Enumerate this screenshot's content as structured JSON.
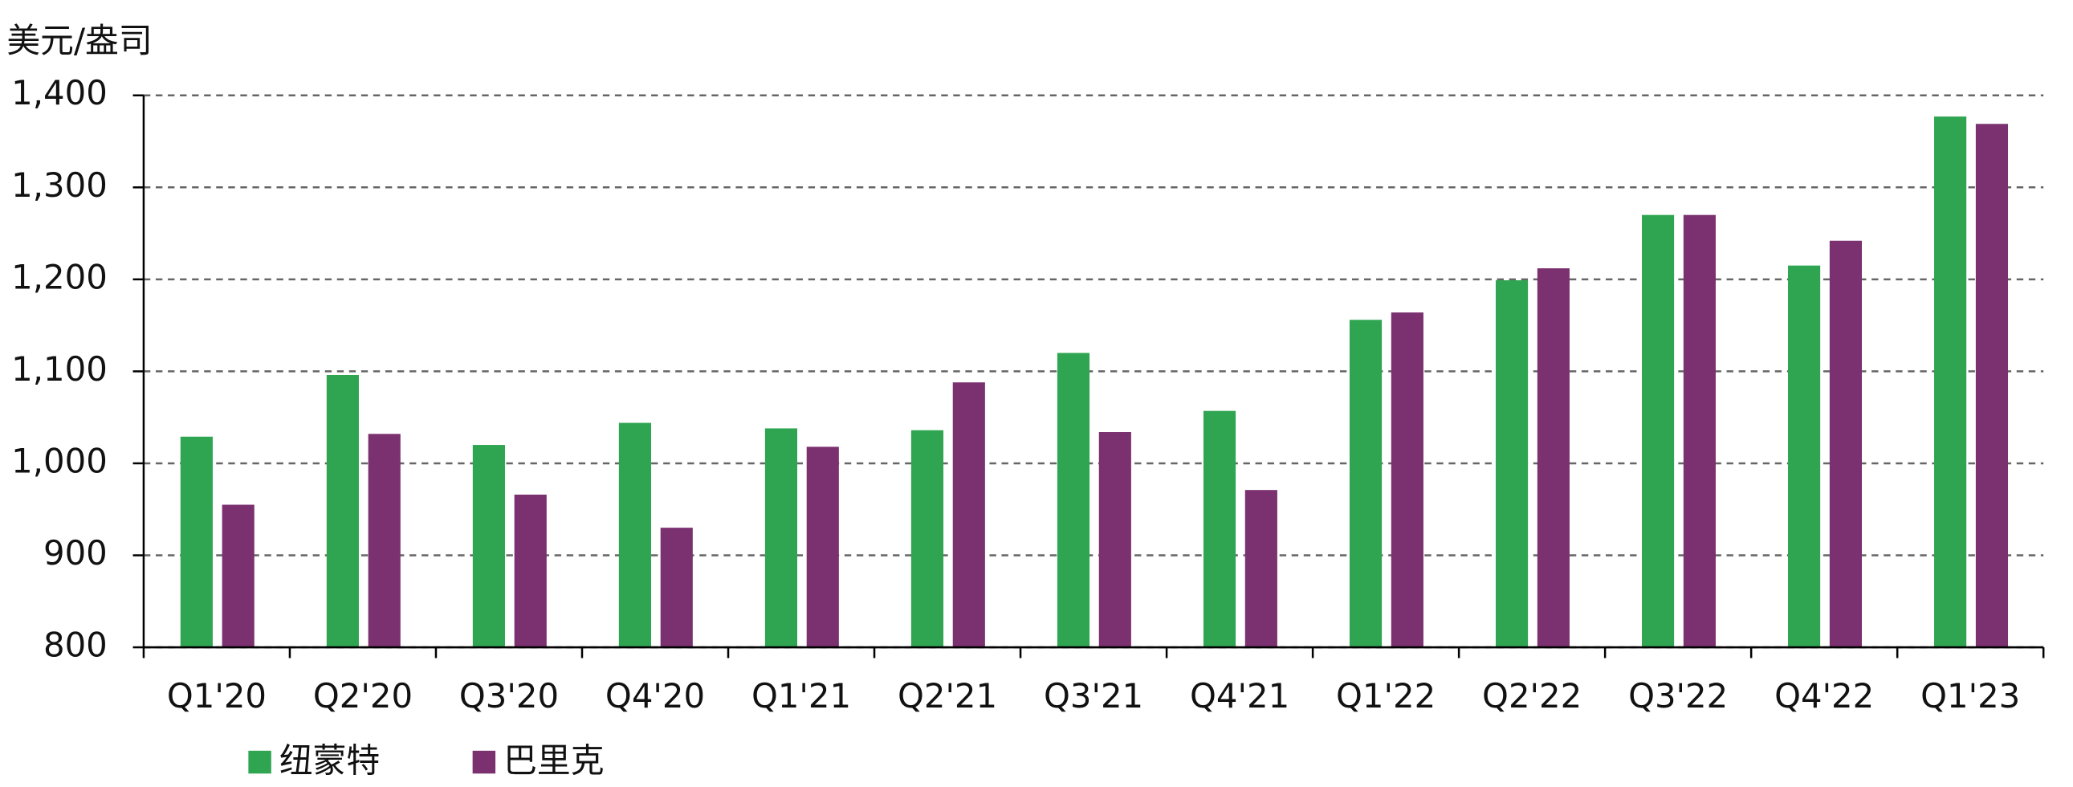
{
  "chart_data": {
    "type": "bar",
    "y_label": "美元/盎司",
    "categories": [
      "Q1'20",
      "Q2'20",
      "Q3'20",
      "Q4'20",
      "Q1'21",
      "Q2'21",
      "Q3'21",
      "Q4'21",
      "Q1'22",
      "Q2'22",
      "Q3'22",
      "Q4'22",
      "Q1'23"
    ],
    "series": [
      {
        "name": "纽蒙特",
        "color": "#2fa551",
        "values": [
          1029,
          1096,
          1020,
          1044,
          1038,
          1036,
          1120,
          1057,
          1156,
          1199,
          1270,
          1215,
          1377
        ]
      },
      {
        "name": "巴里克",
        "color": "#7b3170",
        "values": [
          955,
          1032,
          966,
          930,
          1018,
          1088,
          1034,
          971,
          1164,
          1212,
          1270,
          1242,
          1369
        ]
      }
    ],
    "ylim": [
      800,
      1400
    ],
    "yticks": [
      800,
      900,
      {
        "value": 1000,
        "label": "1,000"
      },
      {
        "value": 1100,
        "label": "1,100"
      },
      {
        "value": 1200,
        "label": "1,200"
      },
      {
        "value": 1300,
        "label": "1,300"
      },
      {
        "value": 1400,
        "label": "1,400"
      }
    ],
    "grid": true,
    "legend": "bottom-left"
  }
}
